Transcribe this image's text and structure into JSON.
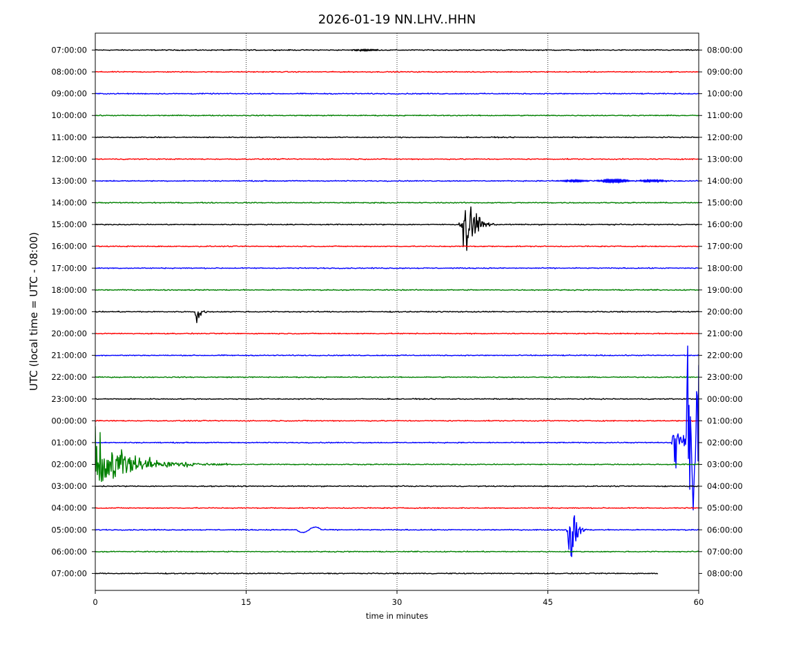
{
  "chart_data": {
    "type": "line",
    "title": "2026-01-19 NN.LHV..HHN",
    "xlabel": "time in minutes",
    "ylabel": "UTC (local time = UTC - 08:00)",
    "xlim": [
      0,
      60
    ],
    "x_ticks": [
      "0",
      "15",
      "30",
      "45",
      "60"
    ],
    "x_tick_values": [
      0,
      15,
      30,
      45,
      60
    ],
    "grid": "vertical dotted at 15, 30, 45",
    "trace_colors": [
      "#000000",
      "#ff0000",
      "#0000ff",
      "#008000"
    ],
    "traces": [
      {
        "left": "07:00:00",
        "right": "08:00:00",
        "color": "#000000",
        "noise": 0.5,
        "end_min": 60,
        "events": [
          {
            "start": 24.5,
            "end": 30,
            "amp": 1.2,
            "kind": "wave"
          }
        ]
      },
      {
        "left": "08:00:00",
        "right": "09:00:00",
        "color": "#ff0000",
        "noise": 0.5,
        "end_min": 60,
        "events": []
      },
      {
        "left": "09:00:00",
        "right": "10:00:00",
        "color": "#0000ff",
        "noise": 0.5,
        "end_min": 60,
        "events": []
      },
      {
        "left": "10:00:00",
        "right": "11:00:00",
        "color": "#008000",
        "noise": 0.5,
        "end_min": 60,
        "events": []
      },
      {
        "left": "11:00:00",
        "right": "12:00:00",
        "color": "#000000",
        "noise": 0.5,
        "end_min": 60,
        "events": []
      },
      {
        "left": "12:00:00",
        "right": "13:00:00",
        "color": "#ff0000",
        "noise": 0.5,
        "end_min": 60,
        "events": []
      },
      {
        "left": "13:00:00",
        "right": "14:00:00",
        "color": "#0000ff",
        "noise": 0.5,
        "end_min": 60,
        "events": [
          {
            "start": 44.5,
            "end": 59,
            "amp": 2.5,
            "kind": "wave"
          }
        ]
      },
      {
        "left": "14:00:00",
        "right": "15:00:00",
        "color": "#008000",
        "noise": 0.5,
        "end_min": 60,
        "events": []
      },
      {
        "left": "15:00:00",
        "right": "16:00:00",
        "color": "#000000",
        "noise": 0.5,
        "end_min": 60,
        "events": [
          {
            "start": 36.0,
            "end": 40.0,
            "amp": 30,
            "kind": "quake"
          }
        ]
      },
      {
        "left": "16:00:00",
        "right": "17:00:00",
        "color": "#ff0000",
        "noise": 0.5,
        "end_min": 60,
        "events": []
      },
      {
        "left": "17:00:00",
        "right": "18:00:00",
        "color": "#0000ff",
        "noise": 0.5,
        "end_min": 60,
        "events": []
      },
      {
        "left": "18:00:00",
        "right": "19:00:00",
        "color": "#008000",
        "noise": 0.5,
        "end_min": 60,
        "events": []
      },
      {
        "left": "19:00:00",
        "right": "20:00:00",
        "color": "#000000",
        "noise": 0.5,
        "end_min": 60,
        "events": [
          {
            "start": 9.8,
            "end": 11.3,
            "amp": 15,
            "kind": "quake"
          }
        ]
      },
      {
        "left": "20:00:00",
        "right": "21:00:00",
        "color": "#ff0000",
        "noise": 0.5,
        "end_min": 60,
        "events": []
      },
      {
        "left": "21:00:00",
        "right": "22:00:00",
        "color": "#0000ff",
        "noise": 0.5,
        "end_min": 60,
        "events": []
      },
      {
        "left": "22:00:00",
        "right": "23:00:00",
        "color": "#008000",
        "noise": 0.5,
        "end_min": 60,
        "events": []
      },
      {
        "left": "23:00:00",
        "right": "00:00:00",
        "color": "#000000",
        "noise": 0.5,
        "end_min": 60,
        "events": []
      },
      {
        "left": "00:00:00",
        "right": "01:00:00",
        "color": "#ff0000",
        "noise": 0.5,
        "end_min": 60,
        "events": []
      },
      {
        "left": "01:00:00",
        "right": "02:00:00",
        "color": "#0000ff",
        "noise": 0.5,
        "end_min": 60,
        "events": [
          {
            "start": 57.3,
            "end": 60,
            "amp": 100,
            "kind": "big"
          }
        ]
      },
      {
        "left": "02:00:00",
        "right": "03:00:00",
        "color": "#008000",
        "noise": 0.5,
        "end_min": 60,
        "events": [
          {
            "start": 0,
            "end": 15,
            "amp": 32,
            "kind": "coda"
          }
        ]
      },
      {
        "left": "03:00:00",
        "right": "04:00:00",
        "color": "#000000",
        "noise": 0.5,
        "end_min": 60,
        "events": []
      },
      {
        "left": "04:00:00",
        "right": "05:00:00",
        "color": "#ff0000",
        "noise": 0.5,
        "end_min": 60,
        "events": []
      },
      {
        "left": "05:00:00",
        "right": "06:00:00",
        "color": "#0000ff",
        "noise": 0.5,
        "end_min": 60,
        "events": [
          {
            "start": 20.0,
            "end": 22.5,
            "amp": 4,
            "kind": "slow"
          },
          {
            "start": 46.8,
            "end": 49.0,
            "amp": 38,
            "kind": "quake"
          }
        ]
      },
      {
        "left": "06:00:00",
        "right": "07:00:00",
        "color": "#008000",
        "noise": 0.5,
        "end_min": 60,
        "events": []
      },
      {
        "left": "07:00:00",
        "right": "08:00:00",
        "color": "#000000",
        "noise": 0.5,
        "end_min": 56,
        "events": []
      }
    ]
  }
}
